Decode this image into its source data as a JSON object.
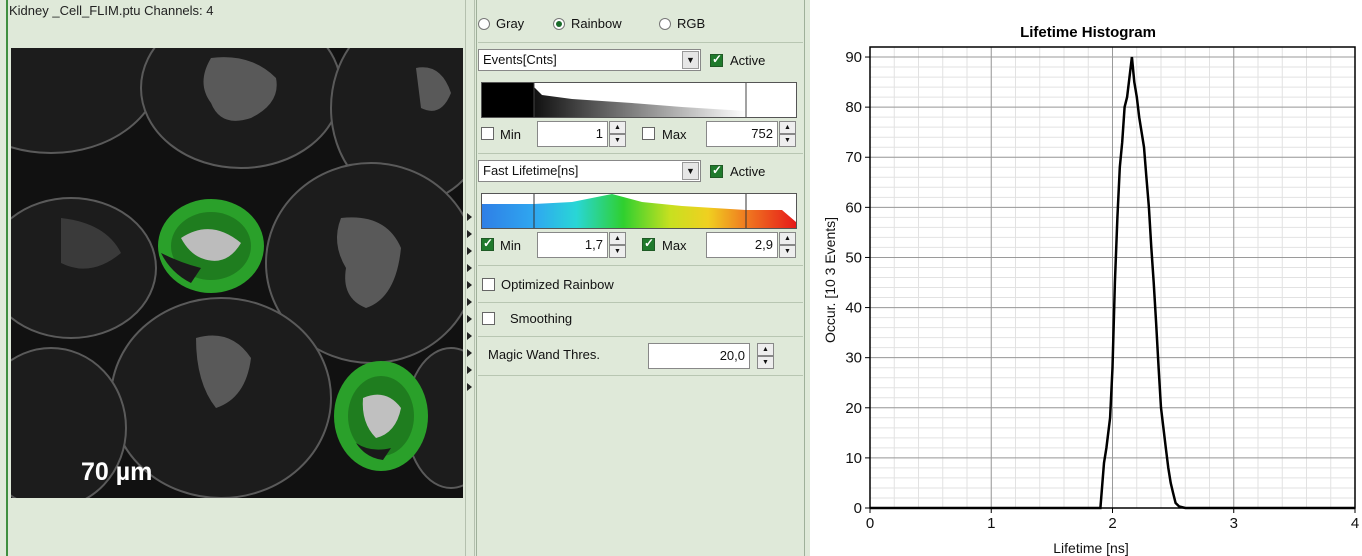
{
  "image_view": {
    "title": "Kidney _Cell_FLIM.ptu Channels: 4",
    "scale_bar_label": "70 µm"
  },
  "color_mode": {
    "options": [
      "Gray",
      "Rainbow",
      "RGB"
    ],
    "selected": "Rainbow"
  },
  "intensity": {
    "channel": "Events[Cnts]",
    "active_label": "Active",
    "active": true,
    "min_label": "Min",
    "min_checked": false,
    "min_value": "1",
    "max_label": "Max",
    "max_checked": false,
    "max_value": "752"
  },
  "lifetime": {
    "channel": "Fast Lifetime[ns]",
    "active_label": "Active",
    "active": true,
    "min_label": "Min",
    "min_checked": true,
    "min_value": "1,7",
    "max_label": "Max",
    "max_checked": true,
    "max_value": "2,9"
  },
  "options": {
    "optimized_rainbow_label": "Optimized Rainbow",
    "optimized_rainbow": false,
    "smoothing_label": "Smoothing",
    "smoothing": false,
    "magic_wand_label": "Magic Wand Thres.",
    "magic_wand_value": "20,0"
  },
  "chart_data": {
    "type": "line",
    "title": "Lifetime Histogram",
    "xlabel": "Lifetime [ns]",
    "ylabel": "Occur. [10  3 Events]",
    "xlim": [
      0,
      4
    ],
    "ylim": [
      0,
      92
    ],
    "xticks": [
      0,
      1,
      2,
      3,
      4
    ],
    "yticks": [
      0,
      10,
      20,
      30,
      40,
      50,
      60,
      70,
      80,
      90
    ],
    "grid": true,
    "color": "#000000",
    "series": [
      {
        "x": [
          0,
          1.9,
          1.93,
          1.95,
          1.98,
          2.0,
          2.02,
          2.04,
          2.06,
          2.08,
          2.1,
          2.12,
          2.14,
          2.16,
          2.18,
          2.2,
          2.22,
          2.24,
          2.26,
          2.28,
          2.3,
          2.32,
          2.34,
          2.36,
          2.38,
          2.4,
          2.42,
          2.44,
          2.46,
          2.48,
          2.5,
          2.52,
          2.55,
          2.6,
          4.0
        ],
        "y": [
          0,
          0,
          9,
          12,
          18,
          28,
          45,
          58,
          68,
          73,
          80,
          82,
          86,
          90,
          85,
          82,
          78,
          75,
          72,
          66,
          60,
          52,
          45,
          37,
          28,
          20,
          16,
          12,
          8,
          5,
          3,
          1,
          0.3,
          0,
          0
        ]
      }
    ]
  }
}
